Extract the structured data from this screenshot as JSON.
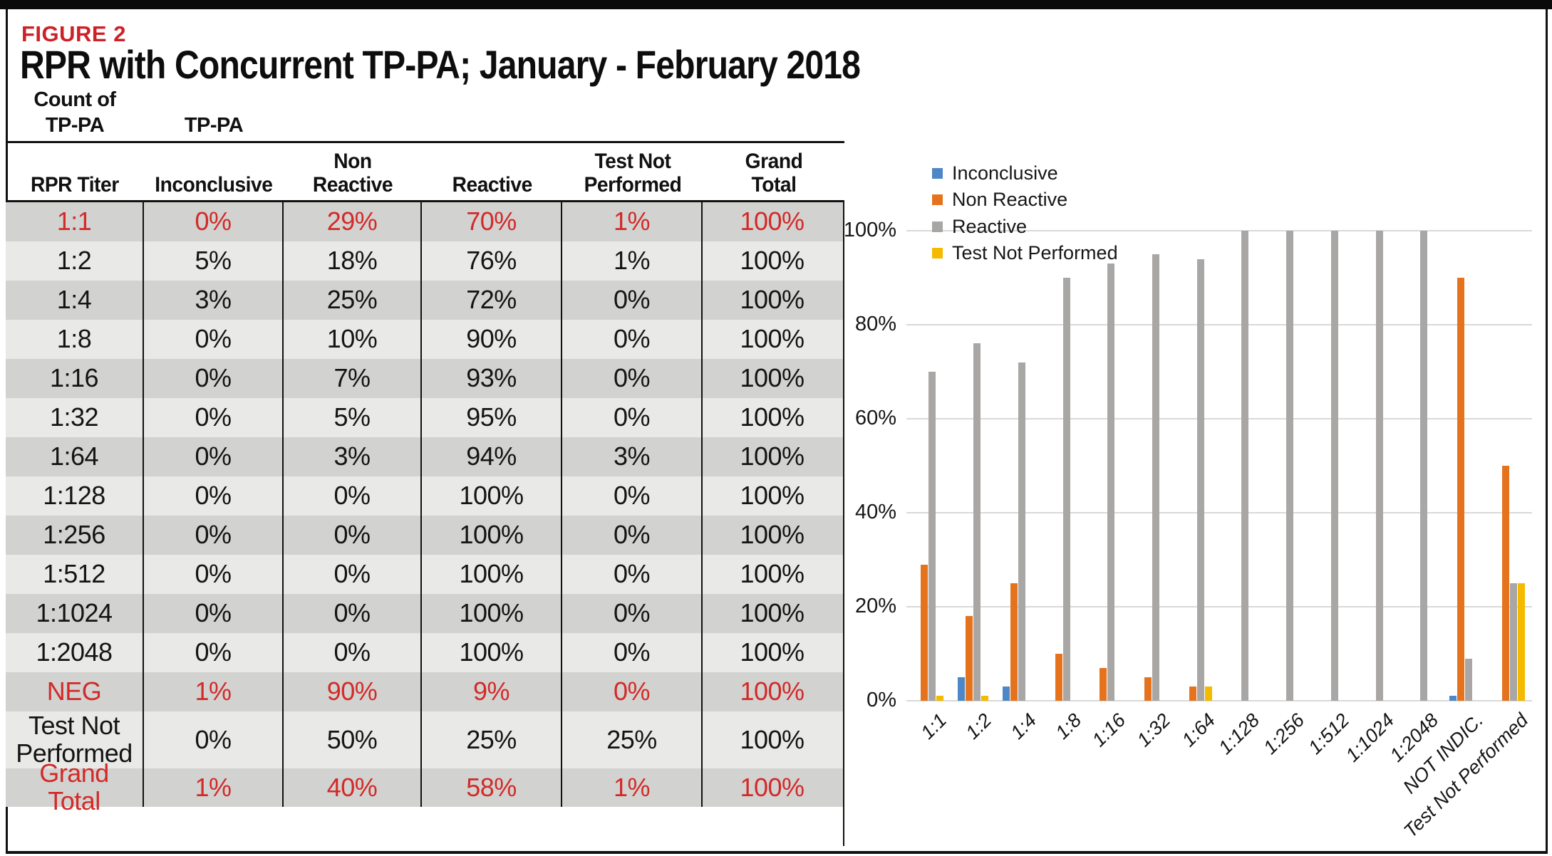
{
  "figure": {
    "label": "FIGURE 2",
    "title": "RPR with Concurrent TP-PA; January - February 2018"
  },
  "table": {
    "corner_label_line1": "Count of",
    "corner_label_line2": "TP-PA",
    "group_label": "TP-PA",
    "columns": [
      "RPR Titer",
      "Inconclusive",
      "Non Reactive",
      "Reactive",
      "Test Not Performed",
      "Grand Total"
    ],
    "rows": [
      {
        "titer": "1:1",
        "values": [
          "0%",
          "29%",
          "70%",
          "1%",
          "100%"
        ],
        "red": true
      },
      {
        "titer": "1:2",
        "values": [
          "5%",
          "18%",
          "76%",
          "1%",
          "100%"
        ],
        "red": false
      },
      {
        "titer": "1:4",
        "values": [
          "3%",
          "25%",
          "72%",
          "0%",
          "100%"
        ],
        "red": false
      },
      {
        "titer": "1:8",
        "values": [
          "0%",
          "10%",
          "90%",
          "0%",
          "100%"
        ],
        "red": false
      },
      {
        "titer": "1:16",
        "values": [
          "0%",
          "7%",
          "93%",
          "0%",
          "100%"
        ],
        "red": false
      },
      {
        "titer": "1:32",
        "values": [
          "0%",
          "5%",
          "95%",
          "0%",
          "100%"
        ],
        "red": false
      },
      {
        "titer": "1:64",
        "values": [
          "0%",
          "3%",
          "94%",
          "3%",
          "100%"
        ],
        "red": false
      },
      {
        "titer": "1:128",
        "values": [
          "0%",
          "0%",
          "100%",
          "0%",
          "100%"
        ],
        "red": false
      },
      {
        "titer": "1:256",
        "values": [
          "0%",
          "0%",
          "100%",
          "0%",
          "100%"
        ],
        "red": false
      },
      {
        "titer": "1:512",
        "values": [
          "0%",
          "0%",
          "100%",
          "0%",
          "100%"
        ],
        "red": false
      },
      {
        "titer": "1:1024",
        "values": [
          "0%",
          "0%",
          "100%",
          "0%",
          "100%"
        ],
        "red": false
      },
      {
        "titer": "1:2048",
        "values": [
          "0%",
          "0%",
          "100%",
          "0%",
          "100%"
        ],
        "red": false
      },
      {
        "titer": "NEG",
        "values": [
          "1%",
          "90%",
          "9%",
          "0%",
          "100%"
        ],
        "red": true
      },
      {
        "titer": "Test Not Performed",
        "values": [
          "0%",
          "50%",
          "25%",
          "25%",
          "100%"
        ],
        "red": false
      },
      {
        "titer": "Grand Total",
        "values": [
          "1%",
          "40%",
          "58%",
          "1%",
          "100%"
        ],
        "red": true
      }
    ]
  },
  "chart_data": {
    "type": "bar",
    "title": "",
    "xlabel": "",
    "ylabel": "",
    "ylim": [
      0,
      100
    ],
    "grid": true,
    "legend_position": "top-left-vertical",
    "y_tick_labels": [
      "100%",
      "80%",
      "60%",
      "40%",
      "20%",
      "0%"
    ],
    "categories": [
      "1:1",
      "1:2",
      "1:4",
      "1:8",
      "1:16",
      "1:32",
      "1:64",
      "1:128",
      "1:256",
      "1:512",
      "1:1024",
      "1:2048",
      "NOT INDIC.",
      "Test Not Performed"
    ],
    "series": [
      {
        "name": "Inconclusive",
        "color": "#4d87c7",
        "values": [
          0,
          5,
          3,
          0,
          0,
          0,
          0,
          0,
          0,
          0,
          0,
          0,
          1,
          0
        ]
      },
      {
        "name": "Non Reactive",
        "color": "#e5731e",
        "values": [
          29,
          18,
          25,
          10,
          7,
          5,
          3,
          0,
          0,
          0,
          0,
          0,
          90,
          50
        ]
      },
      {
        "name": "Reactive",
        "color": "#a8a7a5",
        "values": [
          70,
          76,
          72,
          90,
          93,
          95,
          94,
          100,
          100,
          100,
          100,
          100,
          9,
          25
        ]
      },
      {
        "name": "Test Not Performed",
        "color": "#f4ba00",
        "values": [
          1,
          1,
          0,
          0,
          0,
          0,
          3,
          0,
          0,
          0,
          0,
          0,
          0,
          25
        ]
      }
    ]
  },
  "colors": {
    "figure_label_red": "#ce2127",
    "table_red": "#d22a28",
    "row_dark": "#d2d2d0",
    "row_light": "#e9e9e7",
    "gridline": "#d9d9d9"
  }
}
